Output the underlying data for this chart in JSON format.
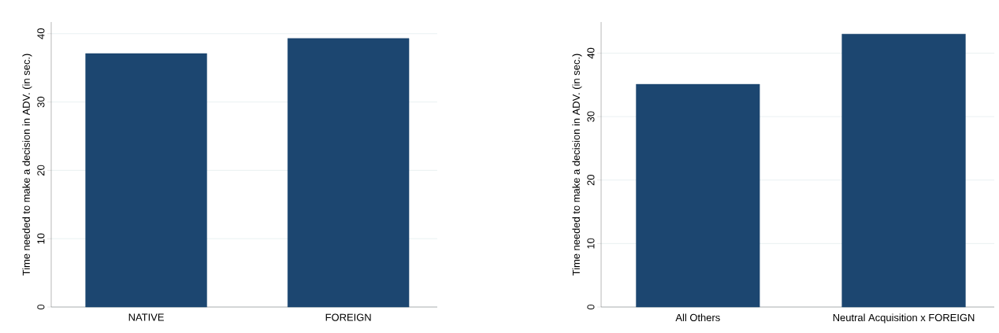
{
  "chart_data": [
    {
      "type": "bar",
      "categories": [
        "NATIVE",
        "FOREIGN"
      ],
      "values": [
        37.1,
        39.3
      ],
      "color": "#1c4670",
      "ylabel": "Time needed to make a decision in ADV. (in sec.)",
      "ylim": [
        0,
        41.7
      ],
      "yticks": [
        0,
        10,
        20,
        30,
        40
      ],
      "grid": "y"
    },
    {
      "type": "bar",
      "categories": [
        "All Others",
        "Neutral Acquisition x FOREIGN"
      ],
      "values": [
        35.1,
        43.0
      ],
      "color": "#1c4670",
      "ylabel": "Time needed to make a decision in ADV. (in sec.)",
      "ylim": [
        0,
        44.9
      ],
      "yticks": [
        0,
        10,
        20,
        30,
        40
      ],
      "grid": "y"
    }
  ]
}
